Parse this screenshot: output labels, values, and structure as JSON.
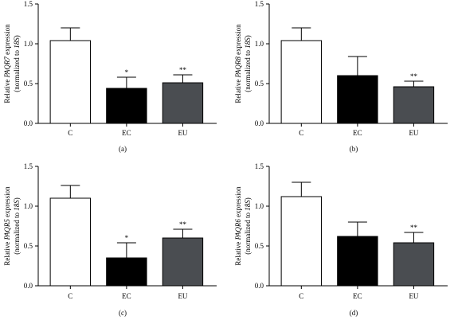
{
  "chart_data": [
    {
      "type": "bar",
      "panel_label": "(a)",
      "ylabel_prefix": "Relative ",
      "ylabel_gene": "PAQR7",
      "ylabel_suffix": " expression",
      "ylabel_line2_prefix": "(normalized to ",
      "ylabel_line2_ref": "18S",
      "ylabel_line2_suffix": ")",
      "categories": [
        "C",
        "EC",
        "EU"
      ],
      "values": [
        1.04,
        0.44,
        0.51
      ],
      "errors": [
        0.16,
        0.14,
        0.1
      ],
      "significance": [
        "",
        "*",
        "**"
      ],
      "fills": [
        "#ffffff",
        "#000000",
        "#4a4d51"
      ],
      "ylim": [
        0,
        1.5
      ],
      "yticks": [
        "0.0",
        "0.5",
        "1.0",
        "1.5"
      ]
    },
    {
      "type": "bar",
      "panel_label": "(b)",
      "ylabel_prefix": "Relative ",
      "ylabel_gene": "PAQR8",
      "ylabel_suffix": " expression",
      "ylabel_line2_prefix": "(normalized to ",
      "ylabel_line2_ref": "18S",
      "ylabel_line2_suffix": ")",
      "categories": [
        "C",
        "EC",
        "EU"
      ],
      "values": [
        1.04,
        0.6,
        0.46
      ],
      "errors": [
        0.16,
        0.24,
        0.07
      ],
      "significance": [
        "",
        "",
        "**"
      ],
      "fills": [
        "#ffffff",
        "#000000",
        "#4a4d51"
      ],
      "ylim": [
        0,
        1.5
      ],
      "yticks": [
        "0.0",
        "0.5",
        "1.0",
        "1.5"
      ]
    },
    {
      "type": "bar",
      "panel_label": "(c)",
      "ylabel_prefix": "Relative ",
      "ylabel_gene": "PAQR5",
      "ylabel_suffix": " expression",
      "ylabel_line2_prefix": "(normalized to ",
      "ylabel_line2_ref": "18S",
      "ylabel_line2_suffix": ")",
      "categories": [
        "C",
        "EC",
        "EU"
      ],
      "values": [
        1.1,
        0.35,
        0.6
      ],
      "errors": [
        0.16,
        0.19,
        0.11
      ],
      "significance": [
        "",
        "*",
        "**"
      ],
      "fills": [
        "#ffffff",
        "#000000",
        "#4a4d51"
      ],
      "ylim": [
        0,
        1.5
      ],
      "yticks": [
        "0.0",
        "0.5",
        "1.0",
        "1.5"
      ]
    },
    {
      "type": "bar",
      "panel_label": "(d)",
      "ylabel_prefix": "Relative ",
      "ylabel_gene": "PAQR6",
      "ylabel_suffix": " expression",
      "ylabel_line2_prefix": "(normalized to ",
      "ylabel_line2_ref": "18S",
      "ylabel_line2_suffix": ")",
      "categories": [
        "C",
        "EC",
        "EU"
      ],
      "values": [
        1.12,
        0.62,
        0.54
      ],
      "errors": [
        0.18,
        0.18,
        0.13
      ],
      "significance": [
        "",
        "",
        "**"
      ],
      "fills": [
        "#ffffff",
        "#000000",
        "#4a4d51"
      ],
      "ylim": [
        0,
        1.5
      ],
      "yticks": [
        "0.0",
        "0.5",
        "1.0",
        "1.5"
      ]
    }
  ]
}
